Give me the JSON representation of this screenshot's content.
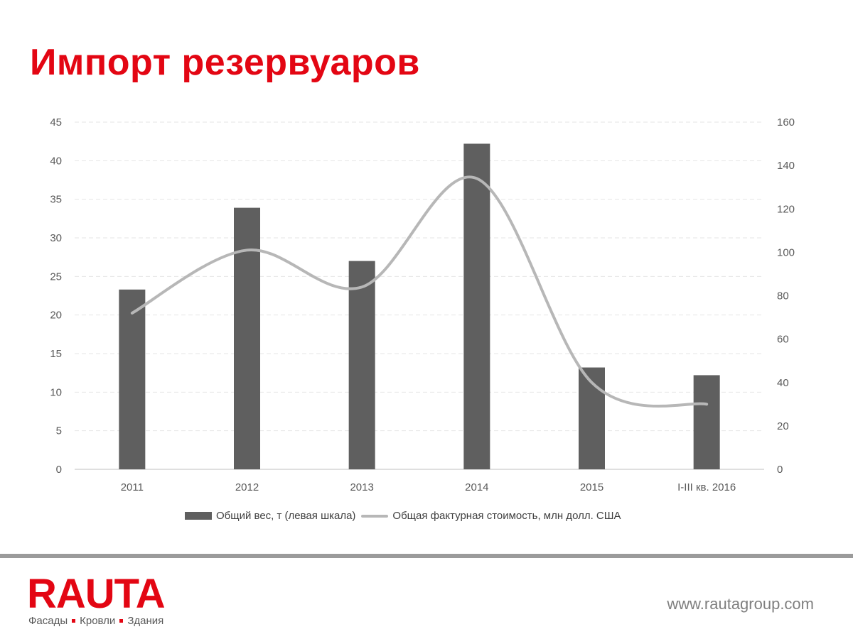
{
  "slide": {
    "title": "Импорт резервуаров"
  },
  "colors": {
    "title": "#e30613",
    "bars": "#5f5f5f",
    "line": "#b7b7b7",
    "grid": "#e6e6e6",
    "axis_text": "#595959"
  },
  "chart_data": {
    "type": "bar",
    "categories": [
      "2011",
      "2012",
      "2013",
      "2014",
      "2015",
      "I-III кв. 2016"
    ],
    "series": [
      {
        "name": "Общий вес, т (левая шкала)",
        "type": "bar",
        "axis": "left",
        "values": [
          23.3,
          33.9,
          27.0,
          42.2,
          13.2,
          12.2
        ]
      },
      {
        "name": "Общая фактурная стоимость, млн долл. США",
        "type": "line",
        "smooth": true,
        "axis": "right",
        "values": [
          72,
          101,
          84,
          134,
          40,
          30
        ]
      }
    ],
    "left_axis": {
      "ticks": [
        "0",
        "5",
        "10",
        "15",
        "20",
        "25",
        "30",
        "35",
        "40",
        "45"
      ],
      "ylim": [
        0,
        45
      ]
    },
    "right_axis": {
      "ticks": [
        "0",
        "20",
        "40",
        "60",
        "80",
        "100",
        "120",
        "140",
        "160"
      ],
      "ylim": [
        0,
        160
      ]
    },
    "grid": true,
    "legend_position": "bottom"
  },
  "footer": {
    "logo_text": "RAUTA",
    "tagline": [
      "Фасады",
      "Кровли",
      "Здания"
    ],
    "url": "www.rautagroup.com"
  }
}
